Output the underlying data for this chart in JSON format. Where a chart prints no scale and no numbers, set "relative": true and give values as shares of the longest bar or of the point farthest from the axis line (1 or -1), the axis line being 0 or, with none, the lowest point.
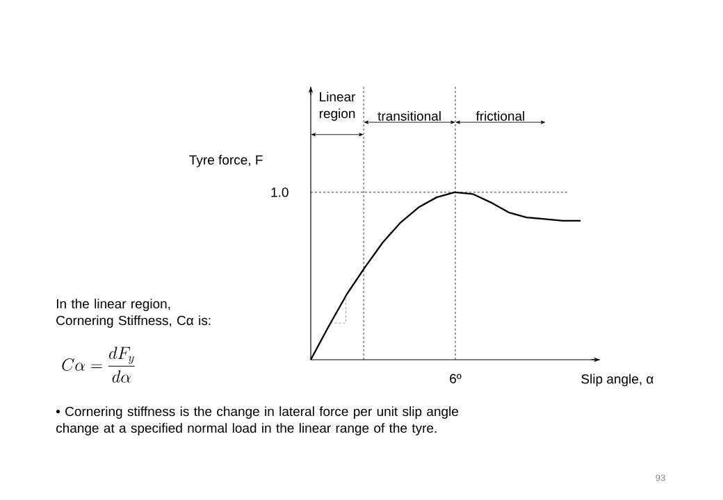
{
  "chart_data": {
    "type": "line",
    "relative": true,
    "xlabel": "Slip angle, α",
    "ylabel": "Tyre force, F",
    "categories": [
      null,
      null,
      null,
      null,
      null,
      null,
      null,
      null,
      null,
      null,
      null,
      null,
      null,
      null,
      null,
      null
    ],
    "series": [
      {
        "color": "#000000",
        "values": [
          0,
          0.2,
          0.39,
          0.55,
          0.7,
          0.82,
          0.91,
          0.97,
          1.0,
          0.99,
          0.94,
          0.88,
          0.85,
          0.84,
          0.83,
          0.83
        ]
      }
    ],
    "marker": "none",
    "line_style": "solid",
    "annotations": [
      "In the linear region, Cornering Stiffness, Cα is:",
      "• Cornering stiffness is the change in lateral force per unit slip angle change at a specified normal load in the linear range of the tyre.",
      "C\\alpha = \\frac{dF_{y}}{d\\alpha}",
      "93",
      "1.0",
      "6º",
      "Linear region",
      "transitional",
      "frictional"
    ]
  }
}
